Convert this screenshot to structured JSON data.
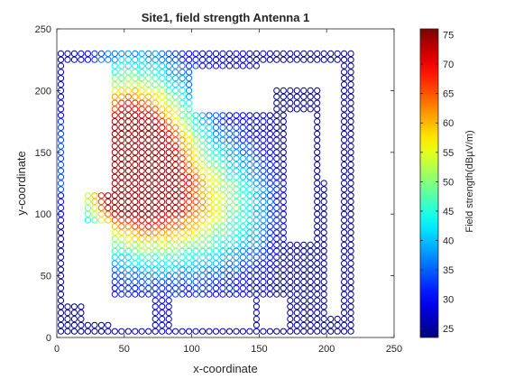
{
  "chart_data": {
    "type": "scatter",
    "title": "Site1, field strength Antenna 1",
    "xlabel": "x-coordinate",
    "ylabel": "y-coordinate",
    "xlim": [
      0,
      250
    ],
    "ylim": [
      0,
      250
    ],
    "xticks": [
      "0",
      "50",
      "100",
      "150",
      "200",
      "250"
    ],
    "yticks": [
      "0",
      "50",
      "100",
      "150",
      "200",
      "250"
    ],
    "colorbar": {
      "label": "Field strength(dBµV/m)",
      "min": 23.5,
      "max": 76,
      "ticks": [
        "25",
        "30",
        "35",
        "40",
        "45",
        "50",
        "55",
        "60",
        "65",
        "70",
        "75"
      ],
      "colormap": "jet"
    },
    "grid_step": 5,
    "marker": "open-circle",
    "grid": false,
    "sampled_regions": [
      {
        "x": [
          3,
          48
        ],
        "y": [
          5,
          232
        ],
        "field_range": [
          28,
          62
        ]
      },
      {
        "x": [
          48,
          110
        ],
        "y": [
          90,
          232
        ],
        "field_range": [
          50,
          72
        ]
      },
      {
        "x": [
          50,
          135
        ],
        "y": [
          35,
          125
        ],
        "field_range": [
          40,
          60
        ]
      },
      {
        "x": [
          110,
          170
        ],
        "y": [
          65,
          175
        ],
        "field_range": [
          38,
          58
        ]
      },
      {
        "x": [
          140,
          218
        ],
        "y": [
          5,
          232
        ],
        "field_range": [
          25,
          45
        ]
      }
    ]
  }
}
